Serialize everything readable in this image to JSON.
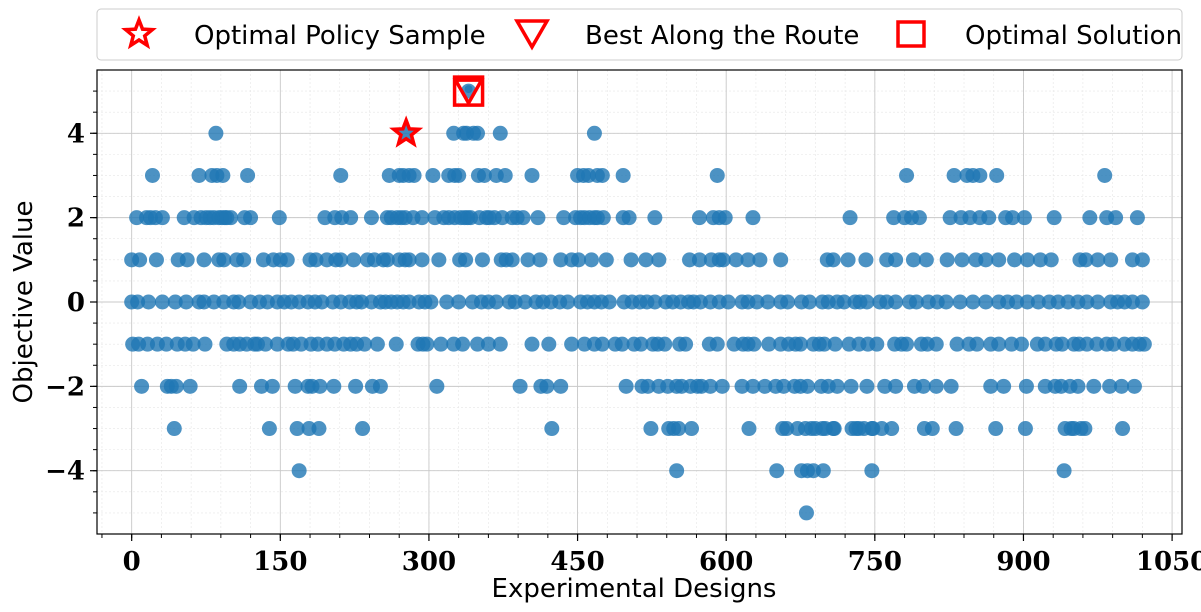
{
  "chart_data": {
    "type": "scatter",
    "xlabel": "Experimental Designs",
    "ylabel": "Objective Value",
    "xlim": [
      -35,
      1060
    ],
    "ylim": [
      -5.5,
      5.5
    ],
    "x_ticks": [
      0,
      150,
      300,
      450,
      600,
      750,
      900,
      1050
    ],
    "y_ticks": [
      -4,
      -2,
      0,
      2,
      4
    ],
    "grid": true,
    "minor_grid": true,
    "legend_position": "top, outside, horizontal",
    "colors": {
      "points": "#1f77b4",
      "markers": "#ff0000"
    },
    "legend": [
      {
        "label": "Optimal Policy Sample",
        "marker": "star"
      },
      {
        "label": "Best Along the Route",
        "marker": "triangle-down"
      },
      {
        "label": "Optimal Solution",
        "marker": "square"
      }
    ],
    "highlights": [
      {
        "name": "Optimal Policy Sample",
        "x": 277,
        "y": 4
      },
      {
        "name": "Best Along the Route",
        "x": 340,
        "y": 5
      },
      {
        "name": "Optimal Solution",
        "x": 340,
        "y": 5
      }
    ],
    "series": [
      {
        "levels": [
          {
            "y": 5,
            "x": [
              340
            ]
          },
          {
            "y": 4,
            "x": [
              85,
              325,
              335,
              338,
              345,
              349,
              372,
              467
            ]
          },
          {
            "y": 3,
            "x": [
              21,
              68,
              81,
              86,
              92,
              117,
              211,
              260,
              270,
              274,
              280,
              285,
              304,
              320,
              326,
              330,
              350,
              356,
              368,
              377,
              404,
              450,
              456,
              461,
              470,
              475,
              496,
              591,
              782,
              830,
              843,
              849,
              856,
              873,
              982
            ]
          },
          {
            "y": 2,
            "x": [
              5,
              15,
              19,
              24,
              31,
              53,
              63,
              70,
              75,
              79,
              83,
              88,
              91,
              94,
              96,
              100,
              114,
              120,
              149,
              195,
              205,
              212,
              221,
              242,
              258,
              262,
              268,
              272,
              276,
              284,
              293,
              306,
              315,
              320,
              326,
              332,
              336,
              339,
              342,
              351,
              358,
              361,
              366,
              374,
              384,
              389,
              395,
              410,
              436,
              448,
              453,
              457,
              462,
              467,
              470,
              476,
              496,
              502,
              528,
              573,
              587,
              593,
              599,
              627,
              725,
              769,
              780,
              787,
              795,
              826,
              837,
              846,
              856,
              865,
              882,
              889,
              901,
              931,
              967,
              984,
              993,
              1015
            ]
          },
          {
            "y": 1,
            "x": [
              0,
              8,
              25,
              47,
              56,
              73,
              88,
              93,
              106,
              113,
              133,
              143,
              150,
              157,
              180,
              186,
              197,
              206,
              211,
              224,
              238,
              245,
              254,
              258,
              270,
              276,
              280,
              293,
              310,
              331,
              337,
              354,
              373,
              378,
              384,
              400,
              412,
              433,
              444,
              451,
              464,
              479,
              504,
              519,
              532,
              563,
              573,
              585,
              593,
              597,
              610,
              622,
              634,
              655,
              702,
              708,
              723,
              741,
              762,
              771,
              789,
              802,
              823,
              838,
              852,
              862,
              875,
              891,
              904,
              917,
              928,
              957,
              963,
              975,
              988,
              1010,
              1020
            ]
          },
          {
            "y": 0,
            "x": [
              0,
              6,
              17,
              31,
              44,
              55,
              68,
              73,
              83,
              93,
              103,
              108,
              120,
              129,
              137,
              147,
              154,
              161,
              169,
              178,
              185,
              192,
              203,
              211,
              220,
              227,
              232,
              242,
              251,
              256,
              262,
              268,
              274,
              280,
              290,
              296,
              302,
              318,
              330,
              344,
              353,
              360,
              368,
              381,
              387,
              397,
              408,
              415,
              423,
              432,
              440,
              453,
              460,
              467,
              474,
              482,
              497,
              505,
              513,
              520,
              528,
              539,
              546,
              554,
              562,
              567,
              574,
              584,
              593,
              602,
              616,
              622,
              631,
              642,
              655,
              662,
              676,
              684,
              697,
              703,
              712,
              719,
              730,
              735,
              742,
              755,
              762,
              771,
              785,
              792,
              804,
              813,
              822,
              836,
              849,
              862,
              875,
              884,
              893,
              904,
              915,
              926,
              935,
              945,
              955,
              964,
              975,
              988,
              995,
              1002,
              1010,
              1020
            ]
          },
          {
            "y": -1,
            "x": [
              1,
              7,
              16,
              26,
              35,
              46,
              54,
              62,
              74,
              96,
              103,
              109,
              116,
              124,
              127,
              135,
              147,
              158,
              163,
              171,
              181,
              188,
              197,
              205,
              214,
              221,
              227,
              235,
              248,
              267,
              289,
              294,
              298,
              312,
              325,
              334,
              349,
              360,
              372,
              404,
              421,
              444,
              457,
              467,
              475,
              488,
              495,
              507,
              514,
              526,
              531,
              538,
              553,
              559,
              583,
              591,
              608,
              617,
              622,
              628,
              643,
              655,
              663,
              670,
              675,
              688,
              694,
              699,
              710,
              724,
              734,
              743,
              752,
              770,
              777,
              782,
              797,
              803,
              812,
              833,
              845,
              853,
              867,
              875,
              888,
              898,
              914,
              922,
              933,
              939,
              951,
              956,
              964,
              974,
              984,
              991,
              1002,
              1010,
              1017,
              1022
            ]
          },
          {
            "y": -2,
            "x": [
              10,
              36,
              40,
              45,
              59,
              109,
              131,
              142,
              165,
              178,
              182,
              190,
              204,
              226,
              243,
              251,
              308,
              392,
              413,
              419,
              433,
              499,
              515,
              521,
              532,
              541,
              550,
              555,
              564,
              571,
              575,
              584,
              596,
              616,
              627,
              639,
              650,
              658,
              669,
              675,
              682,
              696,
              703,
              712,
              726,
              742,
              760,
              771,
              790,
              799,
              812,
              827,
              867,
              880,
              903,
              922,
              932,
              938,
              947,
              955,
              971,
              987,
              999,
              1012
            ]
          },
          {
            "y": -3,
            "x": [
              43,
              139,
              167,
              179,
              189,
              233,
              424,
              524,
              542,
              547,
              552,
              565,
              623,
              657,
              661,
              672,
              680,
              686,
              690,
              697,
              700,
              708,
              709,
              727,
              731,
              734,
              739,
              747,
              748,
              757,
              767,
              800,
              808,
              832,
              872,
              902,
              942,
              948,
              951,
              958,
              962,
              1000
            ]
          },
          {
            "y": -4,
            "x": [
              169,
              550,
              651,
              676,
              682,
              688,
              698,
              747,
              941
            ]
          },
          {
            "y": -5,
            "x": [
              681
            ]
          }
        ]
      }
    ]
  }
}
